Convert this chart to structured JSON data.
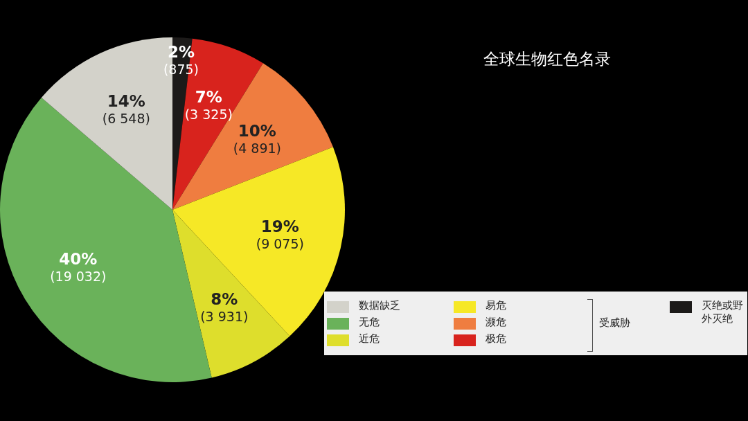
{
  "chart_data": {
    "type": "pie",
    "title": "全球生物红色名录",
    "categories": [
      "灭绝或野外灭绝",
      "极危",
      "濒危",
      "易危",
      "近危",
      "无危",
      "数据缺乏"
    ],
    "values": [
      875,
      3325,
      4891,
      9075,
      3931,
      19032,
      6548
    ],
    "value_labels": [
      "2%\n(875)",
      "7%\n(3 325)",
      "10%\n(4 891)",
      "19%\n(9 075)",
      "8%\n(3 931)",
      "40%\n(19 032)",
      "14%\n(6 548)"
    ],
    "colors": [
      "#1c1a19",
      "#d8231d",
      "#ef7d40",
      "#f6e826",
      "#dede2c",
      "#6ab25a",
      "#d3d2ca"
    ],
    "legend": "bottom right",
    "annotations": [
      "受威胁"
    ]
  }
}
